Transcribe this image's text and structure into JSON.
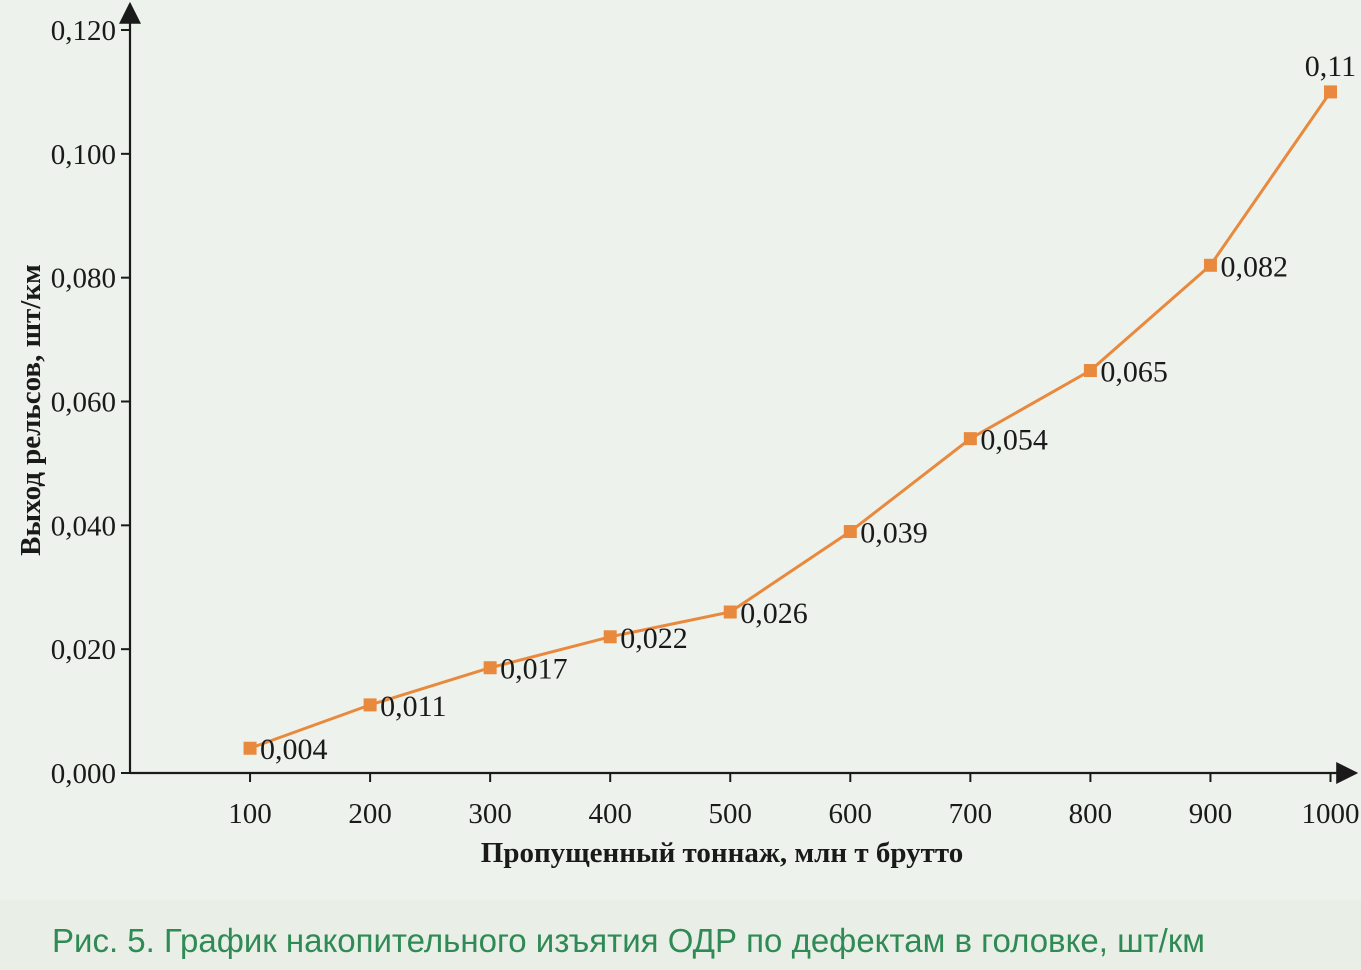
{
  "chart_data": {
    "type": "line",
    "xlabel": "Пропущенный тоннаж, млн т брутто",
    "ylabel": "Выход рельсов, шт/км",
    "x": [
      100,
      200,
      300,
      400,
      500,
      600,
      700,
      800,
      900,
      1000
    ],
    "x_tick_labels": [
      "100",
      "200",
      "300",
      "400",
      "500",
      "600",
      "700",
      "800",
      "900",
      "1000"
    ],
    "y": [
      0.004,
      0.011,
      0.017,
      0.022,
      0.026,
      0.039,
      0.054,
      0.065,
      0.082,
      0.11
    ],
    "data_labels": [
      "0,004",
      "0,011",
      "0,017",
      "0,022",
      "0,026",
      "0,039",
      "0,054",
      "0,065",
      "0,082",
      "0,11"
    ],
    "y_ticks": [
      0,
      0.02,
      0.04,
      0.06,
      0.08,
      0.1,
      0.12
    ],
    "y_tick_labels": [
      "0,000",
      "0,020",
      "0,040",
      "0,060",
      "0,080",
      "0,100",
      "0,120"
    ],
    "xlim": [
      0,
      1070
    ],
    "ylim": [
      0,
      0.12
    ],
    "grid": false,
    "marker": "square",
    "line_color": "#e8893e"
  },
  "caption": "Рис. 5. График накопительного изъятия ОДР по дефектам в головке, шт/км"
}
